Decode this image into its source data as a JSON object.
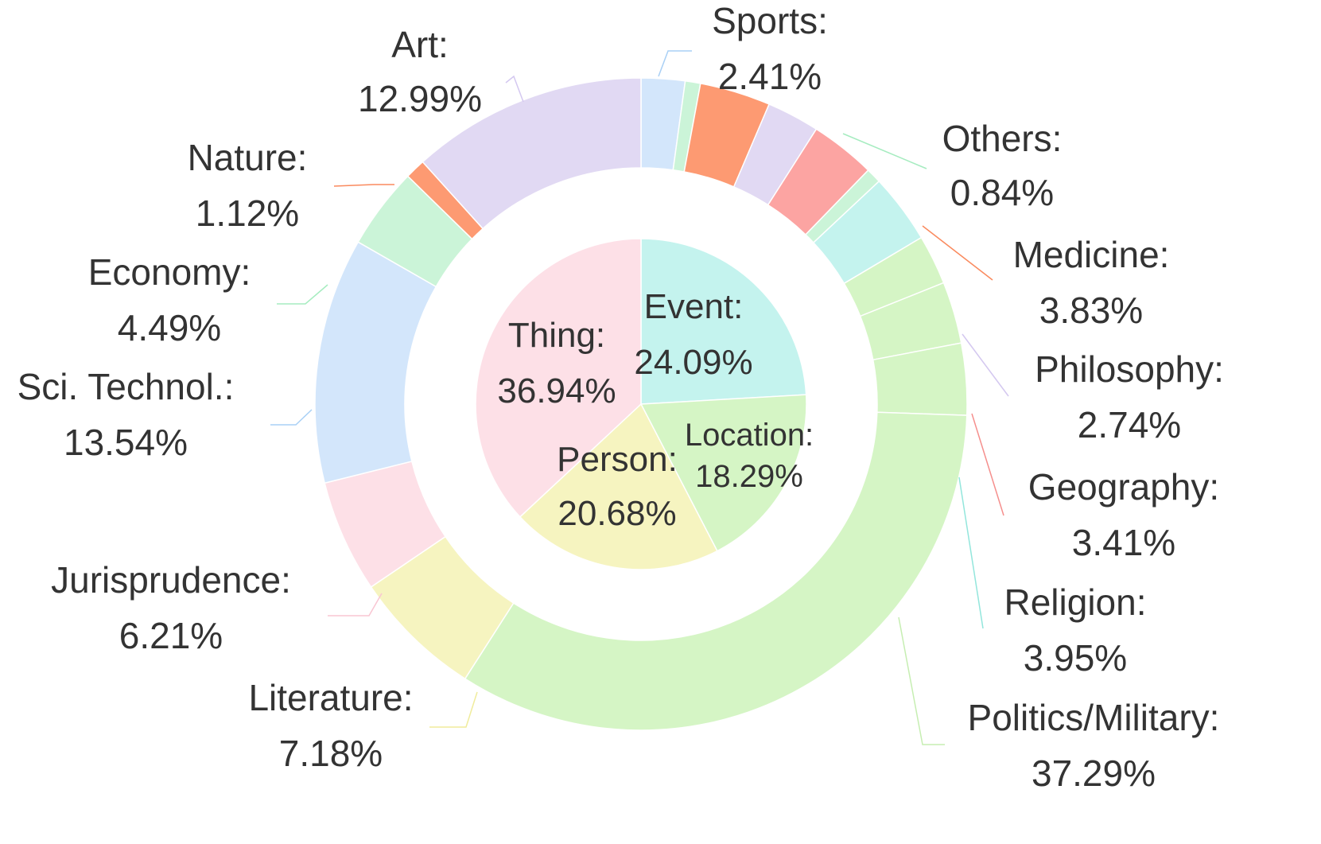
{
  "chart_data": {
    "type": "pie",
    "rings": [
      {
        "name": "",
        "slices": [
          {
            "label": "Event:",
            "value": "24.09%",
            "pct": 24.09,
            "color": "#c4f3ee"
          },
          {
            "label": "Location:",
            "value": "18.29%",
            "pct": 18.29,
            "color": "#d5f5c5"
          },
          {
            "label": "Person:",
            "value": "20.68%",
            "pct": 20.68,
            "color": "#f6f4c0"
          },
          {
            "label": "Thing:",
            "value": "36.94%",
            "pct": 36.94,
            "color": "#fde0e7"
          }
        ]
      },
      {
        "name": "",
        "slices": [
          {
            "label": "Sports:",
            "value": "2.41%",
            "pct": 2.41,
            "color": "#d3e6fb"
          },
          {
            "label": "",
            "value": "",
            "pct": 0.84,
            "color": "#cbf4d8"
          },
          {
            "label": "",
            "value": "",
            "pct": 3.9,
            "color": "#fd9a72"
          },
          {
            "label": "",
            "value": "",
            "pct": 2.9,
            "color": "#e1d9f3"
          },
          {
            "label": "",
            "value": "",
            "pct": 3.6,
            "color": "#fca4a2"
          },
          {
            "label": "Others:",
            "value": "0.84%",
            "pct": 0.84,
            "color": "#cbf4d8"
          },
          {
            "label": "Medicine:",
            "value": "3.83%",
            "pct": 3.83,
            "color": "#c4f3ee"
          },
          {
            "label": "Philosophy:",
            "value": "2.74%",
            "pct": 2.74,
            "color": "#d5f5c5"
          },
          {
            "label": "Geography:",
            "value": "3.41%",
            "pct": 3.41,
            "color": "#d5f5c5"
          },
          {
            "label": "Religion:",
            "value": "3.95%",
            "pct": 3.95,
            "color": "#d5f5c5"
          },
          {
            "label": "Politics/Military:",
            "value": "37.29%",
            "pct": 37.29,
            "color": "#d5f5c5"
          },
          {
            "label": "Literature:",
            "value": "7.18%",
            "pct": 7.18,
            "color": "#f6f4c0"
          },
          {
            "label": "Jurisprudence:",
            "value": "6.21%",
            "pct": 6.21,
            "color": "#fde0e7"
          },
          {
            "label": "Sci. Technol.:",
            "value": "13.54%",
            "pct": 13.54,
            "color": "#d3e6fb"
          },
          {
            "label": "Economy:",
            "value": "4.49%",
            "pct": 4.49,
            "color": "#cbf4d8"
          },
          {
            "label": "Nature:",
            "value": "1.12%",
            "pct": 1.12,
            "color": "#fd9a72"
          },
          {
            "label": "Art:",
            "value": "12.99%",
            "pct": 12.99,
            "color": "#e1d9f3"
          }
        ]
      }
    ],
    "title": "",
    "legend": "none"
  }
}
